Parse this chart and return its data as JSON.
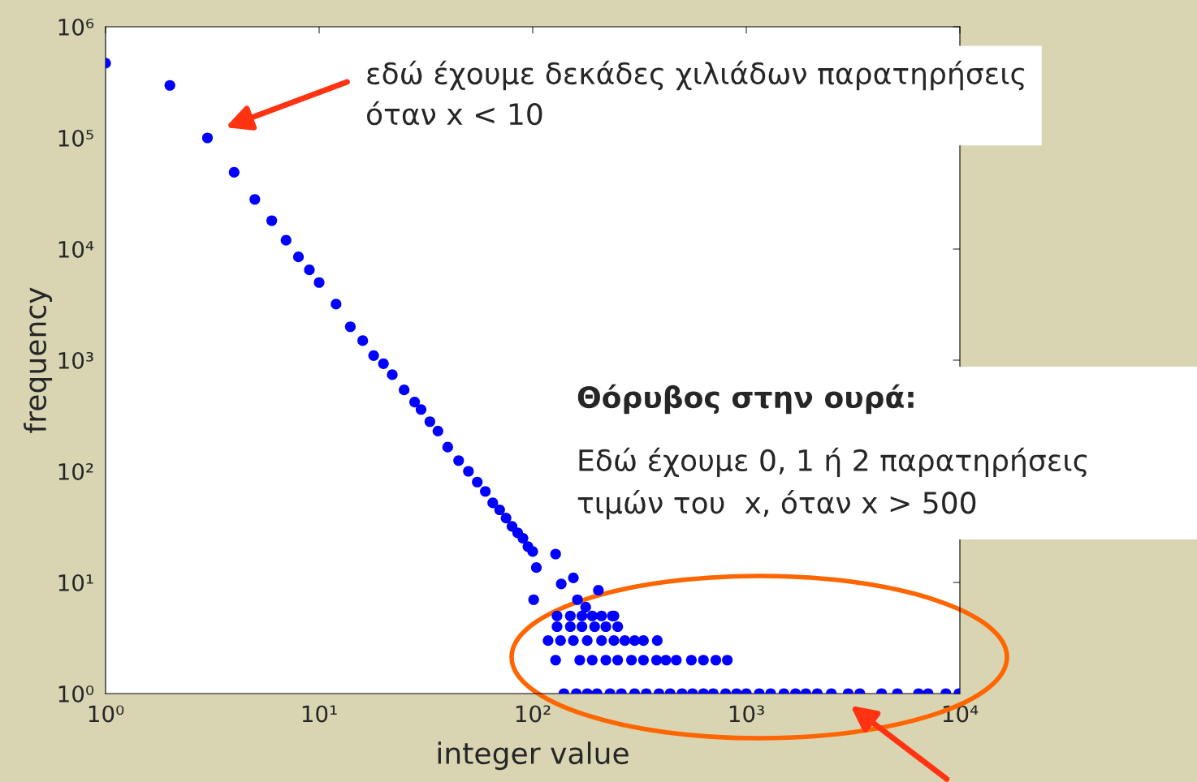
{
  "chart_data": {
    "type": "scatter",
    "xlabel": "integer value",
    "ylabel": "frequency",
    "log": "xy",
    "grid": false,
    "marker": "circle",
    "xlim": [
      1,
      10000
    ],
    "ylim": [
      1,
      1000000
    ],
    "xticks": [
      {
        "value": 1,
        "label": "10⁰"
      },
      {
        "value": 10,
        "label": "10¹"
      },
      {
        "value": 100,
        "label": "10²"
      },
      {
        "value": 1000,
        "label": "10³"
      },
      {
        "value": 10000,
        "label": "10⁴"
      }
    ],
    "yticks": [
      {
        "value": 1,
        "label": "10⁰"
      },
      {
        "value": 10,
        "label": "10¹"
      },
      {
        "value": 100,
        "label": "10²"
      },
      {
        "value": 1000,
        "label": "10³"
      },
      {
        "value": 10000,
        "label": "10⁴"
      },
      {
        "value": 100000,
        "label": "10⁵"
      },
      {
        "value": 1000000,
        "label": "10⁶"
      }
    ],
    "series": [
      {
        "color": "#0000ff",
        "x": [
          1,
          2,
          3,
          4,
          5,
          6,
          7,
          8,
          9,
          10,
          12,
          14,
          16,
          18,
          20,
          22,
          25,
          28,
          30,
          33,
          36,
          40,
          45,
          50,
          55,
          60,
          65,
          70,
          75,
          80,
          85,
          90,
          95,
          100,
          101,
          104,
          128,
          136,
          155,
          162,
          177,
          203,
          236,
          130,
          150,
          170,
          190,
          210,
          240,
          130,
          150,
          170,
          195,
          220,
          250,
          118,
          135,
          155,
          180,
          210,
          240,
          270,
          300,
          330,
          383,
          128,
          166,
          190,
          220,
          250,
          290,
          330,
          380,
          420,
          470,
          553,
          630,
          720,
          815,
          140,
          160,
          180,
          200,
          230,
          260,
          300,
          340,
          390,
          440,
          500,
          560,
          630,
          700,
          800,
          900,
          1000,
          1150,
          1300,
          1500,
          1700,
          1900,
          2150,
          2500,
          3000,
          3400,
          4300,
          5100,
          6400,
          7100,
          8600,
          9900
        ],
        "values": [
          470000,
          297000,
          100000,
          49000,
          28000,
          18000,
          12000,
          8500,
          6500,
          5000,
          3200,
          2000,
          1500,
          1100,
          930,
          740,
          540,
          420,
          360,
          280,
          230,
          165,
          125,
          100,
          80,
          66,
          52,
          45,
          38,
          32,
          28,
          25,
          21,
          19,
          7,
          13.6,
          18,
          9.7,
          11,
          7,
          6,
          8.5,
          5,
          5,
          5,
          5,
          5,
          5,
          5,
          4,
          4,
          4,
          4,
          4,
          4,
          3,
          3,
          3,
          3,
          3,
          3,
          3,
          3,
          3,
          3,
          2,
          2,
          2,
          2,
          2,
          2,
          2,
          2,
          2,
          2,
          2,
          2,
          2,
          2,
          1,
          1,
          1,
          1,
          1,
          1,
          1,
          1,
          1,
          1,
          1,
          1,
          1,
          1,
          1,
          1,
          1,
          1,
          1,
          1,
          1,
          1,
          1,
          1,
          1,
          1,
          1,
          1,
          1,
          1,
          1,
          1
        ]
      }
    ],
    "annotations": [
      "εδώ έχουμε δεκάδες χιλιάδων παρατηρήσεις\nόταν x < 10",
      "Θόρυβος στην ουρά:",
      "Εδώ έχουμε 0, 1 ή 2 παρατηρήσεις\nτιμών του  x, όταν x > 500"
    ]
  }
}
